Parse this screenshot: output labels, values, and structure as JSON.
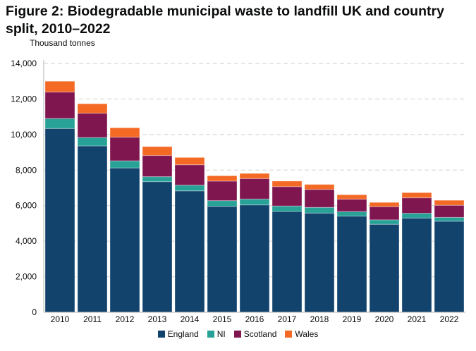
{
  "chart_data": {
    "type": "bar",
    "stacked": true,
    "title": "Figure 2: Biodegradable municipal waste to landfill UK and country split, 2010–2022",
    "ylabel": "Thousand tonnes",
    "xlabel": "",
    "ylim": [
      0,
      14000
    ],
    "yticks": [
      "0",
      "2,000",
      "4,000",
      "6,000",
      "8,000",
      "10,000",
      "12,000",
      "14,000"
    ],
    "grid": true,
    "legend_position": "bottom",
    "categories": [
      "2010",
      "2011",
      "2012",
      "2013",
      "2014",
      "2015",
      "2016",
      "2017",
      "2018",
      "2019",
      "2020",
      "2021",
      "2022"
    ],
    "series": [
      {
        "name": "England",
        "color": "#12436D",
        "values": [
          10340,
          9360,
          8120,
          7350,
          6830,
          5960,
          6040,
          5670,
          5580,
          5410,
          4950,
          5300,
          5120
        ]
      },
      {
        "name": "NI",
        "color": "#28A197",
        "values": [
          560,
          470,
          400,
          280,
          320,
          320,
          330,
          310,
          320,
          250,
          250,
          270,
          220
        ]
      },
      {
        "name": "Scotland",
        "color": "#801650",
        "values": [
          1490,
          1370,
          1330,
          1190,
          1150,
          1100,
          1150,
          1090,
          1010,
          700,
          740,
          870,
          680
        ]
      },
      {
        "name": "Wales",
        "color": "#F46A25",
        "values": [
          610,
          530,
          530,
          500,
          410,
          300,
          290,
          310,
          280,
          250,
          240,
          290,
          280
        ]
      }
    ]
  }
}
